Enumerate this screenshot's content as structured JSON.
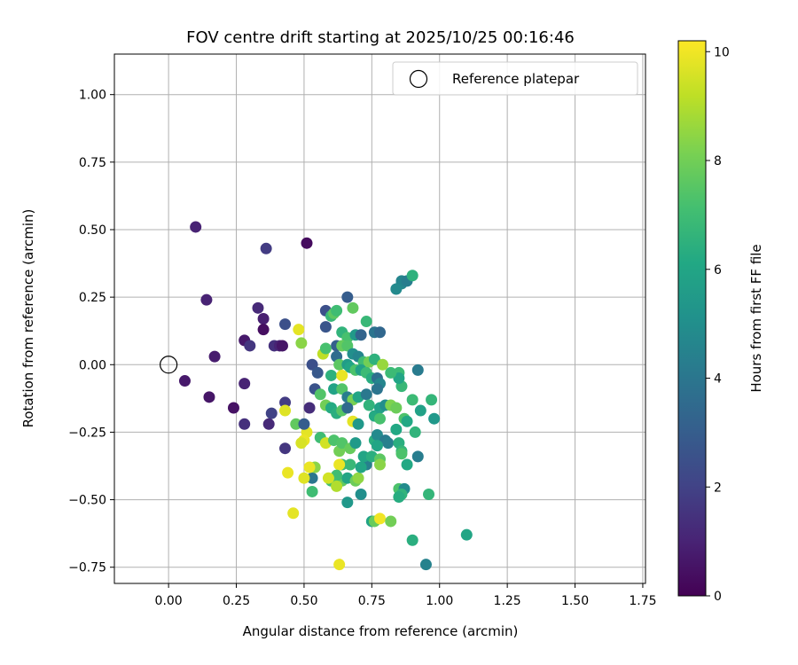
{
  "chart_data": {
    "type": "scatter",
    "title": "FOV centre drift starting at 2025/10/25 00:16:46",
    "xlabel": "Angular distance from reference (arcmin)",
    "ylabel": "Rotation from reference (arcmin)",
    "xlim": [
      -0.2,
      1.76
    ],
    "ylim": [
      -0.81,
      1.15
    ],
    "xticks": [
      0.0,
      0.25,
      0.5,
      0.75,
      1.0,
      1.25,
      1.5,
      1.75
    ],
    "xtick_labels": [
      "0.00",
      "0.25",
      "0.50",
      "0.75",
      "1.00",
      "1.25",
      "1.50",
      "1.75"
    ],
    "yticks": [
      -0.75,
      -0.5,
      -0.25,
      0.0,
      0.25,
      0.5,
      0.75,
      1.0
    ],
    "ytick_labels": [
      "−0.75",
      "−0.50",
      "−0.25",
      "0.00",
      "0.25",
      "0.50",
      "0.75",
      "1.00"
    ],
    "grid": true,
    "legend": {
      "position": "top-right",
      "entries": [
        "Reference platepar"
      ]
    },
    "reference_point": {
      "x": 0.0,
      "y": 0.0,
      "label": "Reference platepar"
    },
    "colorbar": {
      "label": "Hours from first FF file",
      "colormap": "viridis",
      "range": [
        0,
        10.2
      ],
      "ticks": [
        0,
        2,
        4,
        6,
        8,
        10
      ],
      "tick_labels": [
        "0",
        "2",
        "4",
        "6",
        "8",
        "10"
      ]
    },
    "points": [
      [
        0.1,
        0.51,
        1.0
      ],
      [
        0.51,
        0.45,
        0.3
      ],
      [
        0.36,
        0.43,
        1.8
      ],
      [
        0.14,
        0.24,
        1.0
      ],
      [
        0.33,
        0.21,
        1.2
      ],
      [
        0.35,
        0.17,
        0.9
      ],
      [
        0.35,
        0.13,
        0.4
      ],
      [
        0.28,
        0.09,
        0.7
      ],
      [
        0.3,
        0.07,
        1.6
      ],
      [
        0.39,
        0.07,
        1.4
      ],
      [
        0.41,
        0.07,
        1.0
      ],
      [
        0.42,
        0.07,
        0.6
      ],
      [
        0.17,
        0.03,
        0.8
      ],
      [
        0.06,
        -0.06,
        0.7
      ],
      [
        0.15,
        -0.12,
        0.6
      ],
      [
        0.28,
        -0.07,
        1.0
      ],
      [
        0.24,
        -0.16,
        0.5
      ],
      [
        0.28,
        -0.22,
        1.4
      ],
      [
        0.38,
        -0.18,
        2.0
      ],
      [
        0.37,
        -0.22,
        1.2
      ],
      [
        0.43,
        -0.14,
        1.8
      ],
      [
        0.43,
        -0.31,
        1.6
      ],
      [
        0.43,
        0.15,
        2.5
      ],
      [
        0.52,
        -0.16,
        1.3
      ],
      [
        0.53,
        0.0,
        2.5
      ],
      [
        0.55,
        -0.03,
        2.8
      ],
      [
        0.54,
        -0.09,
        2.6
      ],
      [
        0.58,
        0.2,
        2.5
      ],
      [
        0.58,
        0.14,
        2.7
      ],
      [
        0.6,
        0.18,
        6.8
      ],
      [
        0.61,
        0.19,
        7.6
      ],
      [
        0.62,
        0.2,
        7.0
      ],
      [
        0.66,
        0.25,
        3.0
      ],
      [
        0.68,
        0.21,
        7.7
      ],
      [
        0.64,
        0.12,
        6.6
      ],
      [
        0.66,
        0.1,
        7.2
      ],
      [
        0.69,
        0.11,
        5.5
      ],
      [
        0.71,
        0.11,
        3.3
      ],
      [
        0.73,
        0.16,
        6.8
      ],
      [
        0.76,
        0.12,
        3.9
      ],
      [
        0.78,
        0.12,
        3.4
      ],
      [
        0.62,
        0.07,
        3.1
      ],
      [
        0.64,
        0.07,
        7.8
      ],
      [
        0.66,
        0.07,
        7.4
      ],
      [
        0.68,
        0.04,
        5.0
      ],
      [
        0.7,
        0.03,
        4.6
      ],
      [
        0.72,
        0.01,
        7.0
      ],
      [
        0.74,
        0.01,
        8.0
      ],
      [
        0.76,
        0.02,
        6.5
      ],
      [
        0.79,
        0.0,
        8.6
      ],
      [
        0.48,
        0.13,
        9.8
      ],
      [
        0.49,
        0.08,
        8.4
      ],
      [
        0.57,
        0.04,
        9.2
      ],
      [
        0.58,
        0.06,
        7.2
      ],
      [
        0.62,
        0.03,
        3.6
      ],
      [
        0.63,
        0.0,
        7.6
      ],
      [
        0.66,
        0.0,
        5.6
      ],
      [
        0.67,
        -0.01,
        6.0
      ],
      [
        0.69,
        -0.02,
        7.3
      ],
      [
        0.71,
        -0.02,
        5.8
      ],
      [
        0.73,
        -0.03,
        6.9
      ],
      [
        0.75,
        -0.05,
        6.3
      ],
      [
        0.77,
        -0.05,
        3.7
      ],
      [
        0.78,
        -0.07,
        4.6
      ],
      [
        0.6,
        -0.04,
        6.5
      ],
      [
        0.64,
        -0.04,
        9.9
      ],
      [
        0.61,
        -0.09,
        5.9
      ],
      [
        0.64,
        -0.09,
        7.4
      ],
      [
        0.66,
        -0.12,
        4.3
      ],
      [
        0.68,
        -0.13,
        8.1
      ],
      [
        0.7,
        -0.12,
        6.0
      ],
      [
        0.73,
        -0.11,
        4.1
      ],
      [
        0.77,
        -0.09,
        3.9
      ],
      [
        0.56,
        -0.11,
        7.4
      ],
      [
        0.58,
        -0.15,
        8.0
      ],
      [
        0.6,
        -0.16,
        6.2
      ],
      [
        0.62,
        -0.18,
        6.4
      ],
      [
        0.64,
        -0.17,
        7.5
      ],
      [
        0.66,
        -0.16,
        3.5
      ],
      [
        0.68,
        -0.21,
        9.8
      ],
      [
        0.7,
        -0.22,
        5.4
      ],
      [
        0.74,
        -0.15,
        6.6
      ],
      [
        0.76,
        -0.19,
        6.2
      ],
      [
        0.78,
        -0.16,
        5.8
      ],
      [
        0.8,
        -0.15,
        5.0
      ],
      [
        0.82,
        -0.15,
        8.2
      ],
      [
        0.84,
        -0.16,
        7.9
      ],
      [
        0.86,
        -0.08,
        6.8
      ],
      [
        0.9,
        -0.13,
        6.9
      ],
      [
        0.92,
        -0.02,
        4.2
      ],
      [
        0.93,
        -0.17,
        5.8
      ],
      [
        0.97,
        -0.13,
        6.7
      ],
      [
        0.98,
        -0.2,
        5.4
      ],
      [
        0.85,
        -0.03,
        6.9
      ],
      [
        0.85,
        -0.05,
        6.0
      ],
      [
        0.82,
        -0.03,
        6.9
      ],
      [
        0.78,
        -0.2,
        7.2
      ],
      [
        0.76,
        -0.28,
        6.4
      ],
      [
        0.77,
        -0.26,
        4.8
      ],
      [
        0.8,
        -0.28,
        4.2
      ],
      [
        0.81,
        -0.29,
        4.4
      ],
      [
        0.84,
        -0.24,
        6.1
      ],
      [
        0.85,
        -0.29,
        6.4
      ],
      [
        0.86,
        -0.32,
        6.7
      ],
      [
        0.87,
        -0.2,
        7.3
      ],
      [
        0.88,
        -0.21,
        6.1
      ],
      [
        0.91,
        -0.25,
        6.6
      ],
      [
        0.86,
        -0.33,
        7.3
      ],
      [
        0.92,
        -0.34,
        4.3
      ],
      [
        0.88,
        -0.37,
        6.1
      ],
      [
        0.73,
        -0.37,
        4.4
      ],
      [
        0.72,
        -0.34,
        6.0
      ],
      [
        0.75,
        -0.34,
        6.4
      ],
      [
        0.77,
        -0.3,
        6.0
      ],
      [
        0.78,
        -0.35,
        7.6
      ],
      [
        0.56,
        -0.27,
        7.0
      ],
      [
        0.58,
        -0.29,
        9.5
      ],
      [
        0.61,
        -0.28,
        7.3
      ],
      [
        0.63,
        -0.32,
        8.0
      ],
      [
        0.64,
        -0.29,
        7.4
      ],
      [
        0.67,
        -0.31,
        7.8
      ],
      [
        0.64,
        -0.37,
        7.0
      ],
      [
        0.67,
        -0.37,
        6.8
      ],
      [
        0.63,
        -0.37,
        9.9
      ],
      [
        0.64,
        -0.43,
        7.7
      ],
      [
        0.66,
        -0.42,
        6.0
      ],
      [
        0.69,
        -0.43,
        7.9
      ],
      [
        0.7,
        -0.42,
        8.5
      ],
      [
        0.71,
        -0.48,
        5.0
      ],
      [
        0.66,
        -0.51,
        5.4
      ],
      [
        0.62,
        -0.41,
        7.0
      ],
      [
        0.6,
        -0.43,
        7.1
      ],
      [
        0.59,
        -0.42,
        9.5
      ],
      [
        0.53,
        -0.42,
        4.0
      ],
      [
        0.53,
        -0.47,
        7.0
      ],
      [
        0.54,
        -0.38,
        8.4
      ],
      [
        0.52,
        -0.38,
        9.9
      ],
      [
        0.5,
        -0.42,
        9.7
      ],
      [
        0.44,
        -0.4,
        9.9
      ],
      [
        0.46,
        -0.55,
        9.8
      ],
      [
        0.51,
        -0.25,
        9.8
      ],
      [
        0.5,
        -0.28,
        9.9
      ],
      [
        0.49,
        -0.29,
        9.6
      ],
      [
        0.47,
        -0.22,
        7.7
      ],
      [
        0.43,
        -0.17,
        9.7
      ],
      [
        0.5,
        -0.22,
        3.0
      ],
      [
        0.75,
        -0.58,
        5.9
      ],
      [
        0.76,
        -0.58,
        7.8
      ],
      [
        0.78,
        -0.57,
        10.0
      ],
      [
        0.82,
        -0.58,
        8.0
      ],
      [
        0.85,
        -0.46,
        7.3
      ],
      [
        0.87,
        -0.46,
        4.9
      ],
      [
        0.86,
        -0.48,
        6.6
      ],
      [
        0.85,
        -0.49,
        6.3
      ],
      [
        0.96,
        -0.48,
        6.7
      ],
      [
        0.9,
        -0.65,
        6.4
      ],
      [
        0.95,
        -0.74,
        4.5
      ],
      [
        1.1,
        -0.63,
        6.0
      ],
      [
        0.63,
        -0.74,
        9.9
      ],
      [
        0.86,
        0.3,
        4.7
      ],
      [
        0.86,
        0.31,
        4.6
      ],
      [
        0.88,
        0.31,
        4.3
      ],
      [
        0.9,
        0.33,
        6.5
      ],
      [
        0.84,
        0.28,
        4.8
      ],
      [
        0.78,
        -0.37,
        8.4
      ],
      [
        0.71,
        -0.38,
        6.0
      ],
      [
        0.62,
        -0.45,
        9.0
      ],
      [
        0.69,
        -0.29,
        5.5
      ]
    ]
  }
}
